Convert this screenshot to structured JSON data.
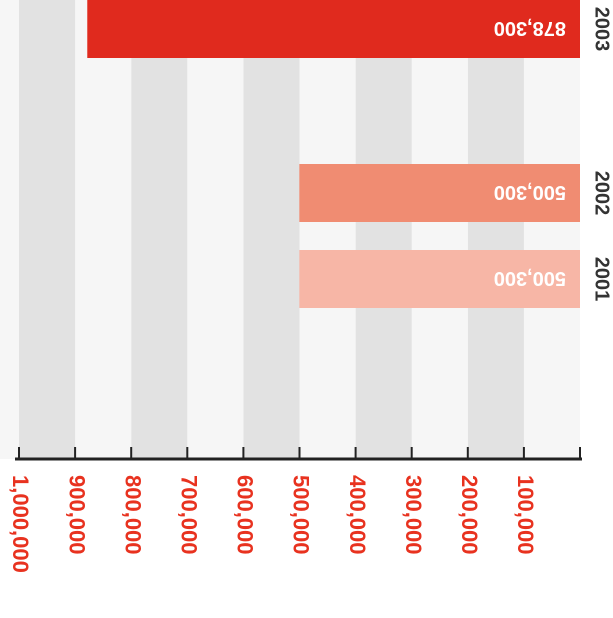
{
  "chart_data": {
    "type": "bar",
    "orientation": "horizontal",
    "categories": [
      "2001",
      "2002",
      "2003"
    ],
    "series": [
      {
        "values": [
          500300,
          500300,
          878300
        ]
      }
    ],
    "value_labels": [
      "500,300",
      "500,300",
      "878,300"
    ],
    "value_ticks": [
      100000,
      200000,
      300000,
      400000,
      500000,
      600000,
      700000,
      800000,
      900000,
      1000000
    ],
    "value_tick_labels": [
      "100,000",
      "200,000",
      "300,000",
      "400,000",
      "500,000",
      "600,000",
      "700,000",
      "800,000",
      "900,000",
      "1,000,000"
    ],
    "xlim": [
      0,
      1000000
    ],
    "grid": "alternating vertical bands",
    "rendered_upside_down": true,
    "colors": {
      "bars": [
        "#f7b6a6",
        "#f08c72",
        "#e02a1e"
      ],
      "tick_labels": "#e8321f",
      "band_light": "#f6f6f6",
      "band_dark": "#e2e2e2",
      "axis": "#222222",
      "bar_text": "#ffffff",
      "category_text": "#333333"
    }
  }
}
